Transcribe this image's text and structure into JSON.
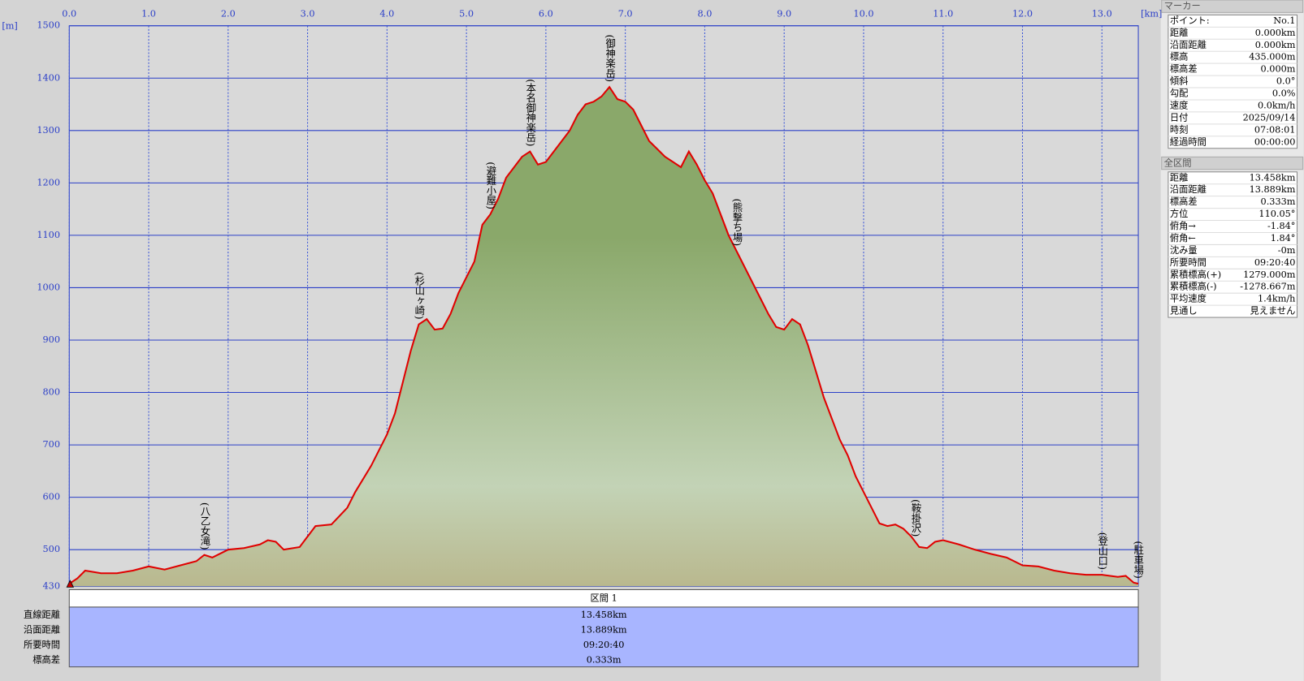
{
  "chart_data": {
    "type": "area",
    "x_label": "[km]",
    "y_label": "[m]",
    "x": [
      0,
      0.1,
      0.2,
      0.4,
      0.6,
      0.8,
      1.0,
      1.2,
      1.4,
      1.6,
      1.7,
      1.8,
      2.0,
      2.2,
      2.4,
      2.5,
      2.6,
      2.7,
      2.9,
      3.0,
      3.1,
      3.3,
      3.5,
      3.6,
      3.8,
      4.0,
      4.1,
      4.2,
      4.3,
      4.4,
      4.5,
      4.6,
      4.7,
      4.8,
      4.9,
      5.0,
      5.1,
      5.2,
      5.3,
      5.4,
      5.5,
      5.6,
      5.7,
      5.8,
      5.9,
      6.0,
      6.1,
      6.2,
      6.3,
      6.4,
      6.5,
      6.6,
      6.7,
      6.8,
      6.9,
      7.0,
      7.1,
      7.2,
      7.3,
      7.4,
      7.5,
      7.6,
      7.7,
      7.8,
      7.9,
      8.0,
      8.1,
      8.2,
      8.3,
      8.4,
      8.5,
      8.6,
      8.7,
      8.8,
      8.9,
      9.0,
      9.1,
      9.2,
      9.3,
      9.4,
      9.5,
      9.6,
      9.7,
      9.8,
      9.9,
      10.0,
      10.1,
      10.2,
      10.3,
      10.4,
      10.5,
      10.6,
      10.7,
      10.8,
      10.9,
      11.0,
      11.2,
      11.4,
      11.6,
      11.8,
      12.0,
      12.2,
      12.4,
      12.6,
      12.8,
      13.0,
      13.2,
      13.3,
      13.4,
      13.458
    ],
    "values": [
      435,
      445,
      460,
      455,
      455,
      460,
      468,
      462,
      470,
      478,
      490,
      485,
      500,
      503,
      510,
      518,
      515,
      500,
      505,
      525,
      545,
      548,
      580,
      610,
      660,
      720,
      760,
      820,
      880,
      930,
      940,
      920,
      922,
      950,
      990,
      1020,
      1050,
      1120,
      1140,
      1170,
      1210,
      1230,
      1250,
      1260,
      1235,
      1240,
      1260,
      1280,
      1300,
      1330,
      1350,
      1355,
      1365,
      1383,
      1360,
      1355,
      1340,
      1310,
      1280,
      1265,
      1250,
      1240,
      1230,
      1260,
      1235,
      1205,
      1180,
      1140,
      1100,
      1070,
      1040,
      1010,
      980,
      950,
      925,
      920,
      940,
      930,
      890,
      840,
      790,
      750,
      710,
      680,
      640,
      610,
      580,
      550,
      545,
      548,
      540,
      525,
      505,
      503,
      515,
      518,
      510,
      500,
      492,
      485,
      470,
      468,
      460,
      455,
      452,
      452,
      448,
      450,
      437,
      435
    ],
    "color": "#e00000",
    "fill_colors": [
      "#8aa86a",
      "#c3d3b6",
      "#b9b88e"
    ],
    "plot_background": "#d9d9d9",
    "grid": true,
    "xlim": [
      0,
      13.458
    ],
    "xticks": [
      {
        "value": 0,
        "label": "0.0"
      },
      {
        "value": 1,
        "label": "1.0"
      },
      {
        "value": 2,
        "label": "2.0"
      },
      {
        "value": 3,
        "label": "3.0"
      },
      {
        "value": 4,
        "label": "4.0"
      },
      {
        "value": 5,
        "label": "5.0"
      },
      {
        "value": 6,
        "label": "6.0"
      },
      {
        "value": 7,
        "label": "7.0"
      },
      {
        "value": 8,
        "label": "8.0"
      },
      {
        "value": 9,
        "label": "9.0"
      },
      {
        "value": 10,
        "label": "10.0"
      },
      {
        "value": 11,
        "label": "11.0"
      },
      {
        "value": 12,
        "label": "12.0"
      },
      {
        "value": 13,
        "label": "13.0"
      }
    ],
    "ylim": [
      430,
      1500
    ],
    "yticks": [
      430,
      500,
      600,
      700,
      800,
      900,
      1000,
      1100,
      1200,
      1300,
      1400,
      1500
    ],
    "annotations": [
      {
        "text": "(八乙女滝)",
        "x": 1.7
      },
      {
        "text": "(杉山ヶ崎)",
        "x": 4.4
      },
      {
        "text": "(避難小屋)",
        "x": 5.3
      },
      {
        "text": "(本名御神楽岳)",
        "x": 5.8
      },
      {
        "text": "(御神楽岳)",
        "x": 6.8
      },
      {
        "text": "(熊撃ち場)",
        "x": 8.4
      },
      {
        "text": "(鞍掛沢)",
        "x": 10.65
      },
      {
        "text": "(登山口)",
        "x": 13.0
      },
      {
        "text": "(駐車場)",
        "x": 13.45
      }
    ]
  },
  "segment_table": {
    "header": "区間 1",
    "rows": [
      {
        "label": "直線距離",
        "value": "13.458km"
      },
      {
        "label": "沿面距離",
        "value": "13.889km"
      },
      {
        "label": "所要時間",
        "value": "09:20:40"
      },
      {
        "label": "標高差",
        "value": "0.333m"
      }
    ]
  },
  "marker_panel": {
    "title": "マーカー",
    "rows": [
      [
        "ポイント:",
        "No.1"
      ],
      [
        "距離",
        "0.000km"
      ],
      [
        "沿面距離",
        "0.000km"
      ],
      [
        "標高",
        "435.000m"
      ],
      [
        "標高差",
        "0.000m"
      ],
      [
        "傾斜",
        "0.0°"
      ],
      [
        "勾配",
        "0.0%"
      ],
      [
        "速度",
        "0.0km/h"
      ],
      [
        "日付",
        "2025/09/14"
      ],
      [
        "時刻",
        "07:08:01"
      ],
      [
        "経過時間",
        "00:00:00"
      ]
    ]
  },
  "total_panel": {
    "title": "全区間",
    "rows": [
      [
        "距離",
        "13.458km"
      ],
      [
        "沿面距離",
        "13.889km"
      ],
      [
        "標高差",
        "0.333m"
      ],
      [
        "方位",
        "110.05°"
      ],
      [
        "俯角→",
        "-1.84°"
      ],
      [
        "俯角←",
        "1.84°"
      ],
      [
        "沈み量",
        "-0m"
      ],
      [
        "所要時間",
        "09:20:40"
      ],
      [
        "累積標高(+)",
        "1279.000m"
      ],
      [
        "累積標高(-)",
        "-1278.667m"
      ],
      [
        "平均速度",
        "1.4km/h"
      ],
      [
        "見通し",
        "見えません"
      ]
    ]
  }
}
